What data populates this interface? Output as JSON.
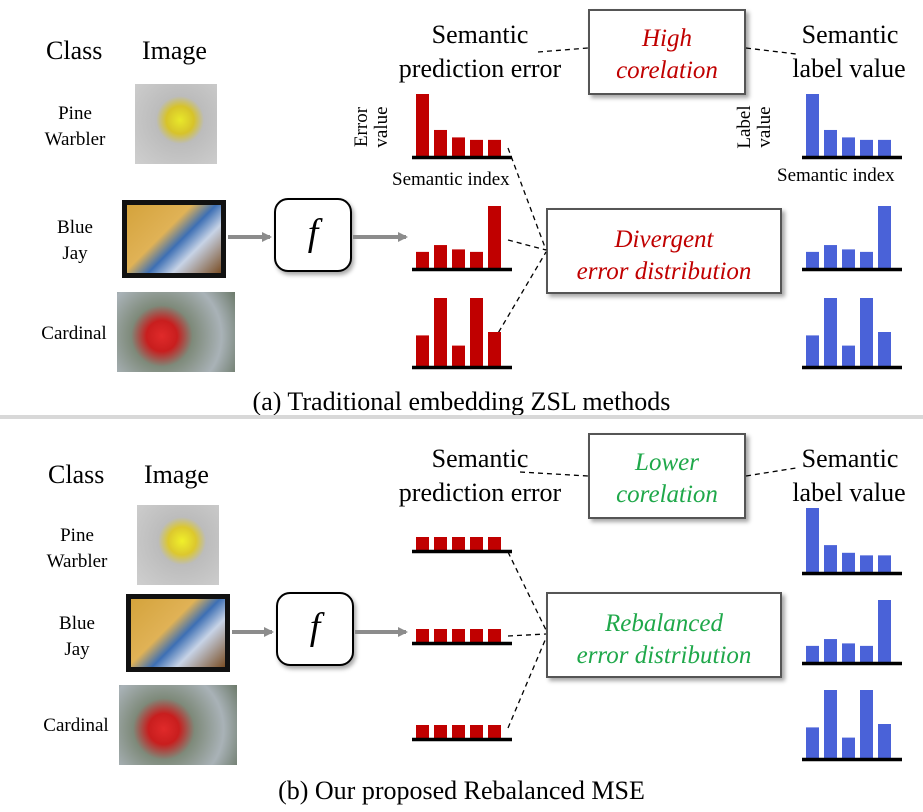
{
  "panel_a": {
    "class_header": "Class",
    "image_header": "Image",
    "error_header": [
      "Semantic",
      "prediction error"
    ],
    "label_header": [
      "Semantic",
      "label value"
    ],
    "corr_box": [
      "High",
      "corelation"
    ],
    "dist_box": [
      "Divergent",
      "error distribution"
    ],
    "axis_error": [
      "Error",
      "value"
    ],
    "axis_label": [
      "Label",
      "value"
    ],
    "index_error": "Semantic index",
    "index_label": "Semantic index",
    "f": "f",
    "caption": "(a) Traditional embedding  ZSL methods",
    "classes": [
      {
        "name": [
          "Pine",
          "Warbler"
        ],
        "errors": [
          1.0,
          0.42,
          0.3,
          0.26,
          0.26
        ],
        "labels": [
          1.0,
          0.42,
          0.3,
          0.26,
          0.26
        ]
      },
      {
        "name": [
          "Blue",
          "Jay"
        ],
        "errors": [
          0.26,
          0.37,
          0.3,
          0.26,
          1.0
        ],
        "labels": [
          0.26,
          0.37,
          0.3,
          0.26,
          1.0
        ]
      },
      {
        "name": [
          "Cardinal"
        ],
        "errors": [
          0.45,
          1.0,
          0.3,
          1.0,
          0.5
        ],
        "labels": [
          0.45,
          1.0,
          0.3,
          1.0,
          0.5
        ]
      }
    ],
    "colors": {
      "accent": "#c00000",
      "error_bars": "#c00000",
      "label_bars": "#4a62d8"
    }
  },
  "panel_b": {
    "class_header": "Class",
    "image_header": "Image",
    "error_header": [
      "Semantic",
      "prediction error"
    ],
    "label_header": [
      "Semantic",
      "label value"
    ],
    "corr_box": [
      "Lower",
      "corelation"
    ],
    "dist_box": [
      "Rebalanced",
      "error distribution"
    ],
    "f": "f",
    "caption": "(b) Our proposed Rebalanced MSE",
    "classes": [
      {
        "name": [
          "Pine",
          "Warbler"
        ],
        "errors": [
          1,
          1,
          1,
          1,
          1
        ],
        "labels": [
          1.0,
          0.42,
          0.3,
          0.26,
          0.26
        ]
      },
      {
        "name": [
          "Blue",
          "Jay"
        ],
        "errors": [
          1,
          1,
          1,
          1,
          1
        ],
        "labels": [
          0.26,
          0.37,
          0.3,
          0.26,
          1.0
        ]
      },
      {
        "name": [
          "Cardinal"
        ],
        "errors": [
          1,
          1,
          1,
          1,
          1
        ],
        "labels": [
          0.45,
          1.0,
          0.3,
          1.0,
          0.5
        ]
      }
    ],
    "colors": {
      "accent": "#1fa84a",
      "error_bars": "#c00000",
      "label_bars": "#4a62d8"
    }
  }
}
